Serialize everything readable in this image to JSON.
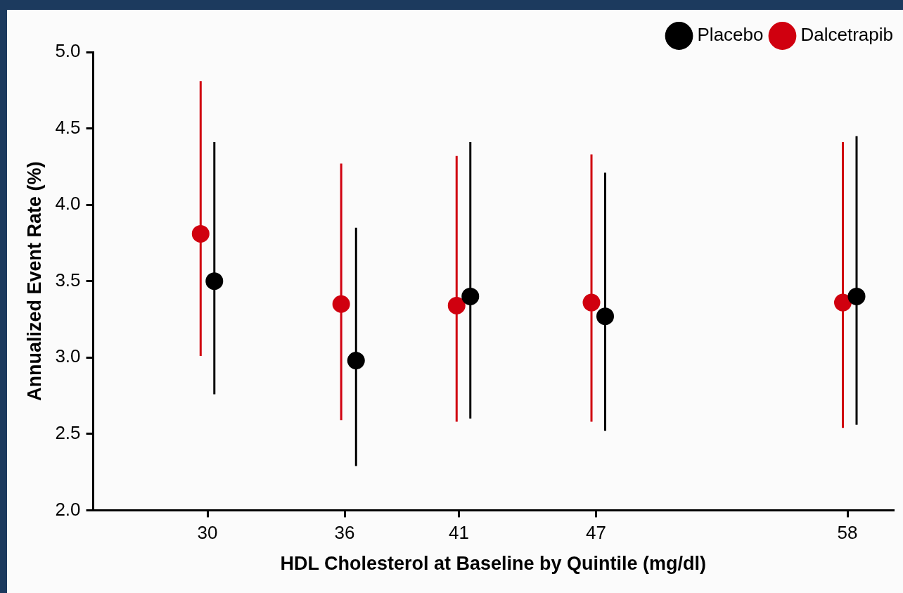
{
  "chart_data": {
    "type": "scatter",
    "xlabel": "HDL Cholesterol at Baseline by Quintile (mg/dl)",
    "ylabel": "Annualized Event Rate (%)",
    "xlim": [
      25,
      60
    ],
    "xticks": [
      30,
      36,
      41,
      47,
      58
    ],
    "ylim": [
      2,
      5
    ],
    "yticks": [
      {
        "value": 2,
        "label": "2.0"
      },
      {
        "value": 2.5,
        "label": "2.5"
      },
      {
        "value": 3,
        "label": "3.0"
      },
      {
        "value": 3.5,
        "label": "3.5"
      },
      {
        "value": 4,
        "label": "4.0"
      },
      {
        "value": 4.5,
        "label": "4.5"
      },
      {
        "value": 5,
        "label": "5.0"
      }
    ],
    "series": [
      {
        "name": "Placebo",
        "color": "#000000",
        "x": [
          30.3,
          36.5,
          41.5,
          47.4,
          58.4
        ],
        "values": [
          3.5,
          2.98,
          3.4,
          3.27,
          3.4
        ],
        "errors": [
          [
            2.76,
            4.41
          ],
          [
            2.29,
            3.85
          ],
          [
            2.6,
            4.41
          ],
          [
            2.52,
            4.21
          ],
          [
            2.56,
            4.45
          ]
        ]
      },
      {
        "name": "Dalcetrapib",
        "color": "#d0000f",
        "x": [
          29.7,
          35.85,
          40.9,
          46.8,
          57.8
        ],
        "values": [
          3.81,
          3.35,
          3.34,
          3.36,
          3.36
        ],
        "errors": [
          [
            3.01,
            4.81
          ],
          [
            2.59,
            4.27
          ],
          [
            2.58,
            4.32
          ],
          [
            2.58,
            4.33
          ],
          [
            2.54,
            4.41
          ]
        ]
      }
    ],
    "legend": "top right",
    "marker": "circle",
    "grid": false
  }
}
